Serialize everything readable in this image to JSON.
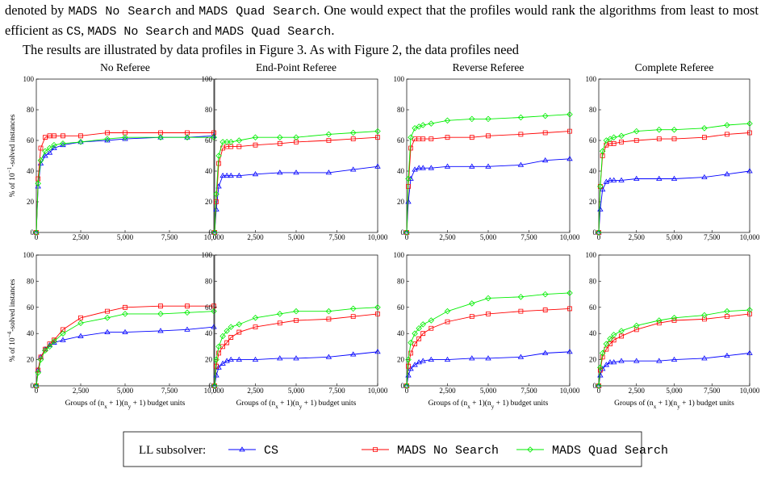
{
  "text": {
    "paragraph_1": [
      "denoted by ",
      "MADS No Search",
      " and ",
      "MADS Quad Search",
      ". One would expect that the profiles would rank the algorithms from least to most efficient as ",
      "CS",
      ", ",
      "MADS No Search",
      " and ",
      "MADS Quad Search",
      "."
    ],
    "paragraph_2": [
      "The results are illustrated by data profiles in Figure 3.  As with Figure 2, the data profiles need"
    ]
  },
  "legend": {
    "title": "LL subsolver:"
  },
  "chart_data": [
    {
      "type": "line",
      "title": "No Referee",
      "ylabel": [
        "% of 10",
        "−1",
        "-solved instances"
      ],
      "x": [
        0,
        100,
        250,
        500,
        750,
        1000,
        1500,
        2500,
        4000,
        5000,
        7000,
        8500,
        10000
      ],
      "xlim": [
        0,
        10000
      ],
      "ylim": [
        0,
        100
      ],
      "xticks": [
        0,
        {
          "value": 2500,
          "label": "2,500"
        },
        {
          "value": 5000,
          "label": "5,000"
        },
        {
          "value": 7500,
          "label": "7,500"
        },
        {
          "value": 10000,
          "label": "10,000"
        }
      ],
      "yticks": [
        0,
        20,
        40,
        60,
        80,
        100
      ],
      "series": [
        {
          "name": "CS",
          "color": "#0000ff",
          "values": [
            0,
            30,
            45,
            50,
            52,
            55,
            57,
            59,
            60,
            61,
            62,
            62,
            63
          ]
        },
        {
          "name": "MADS No Search",
          "color": "#ff0000",
          "values": [
            0,
            35,
            55,
            62,
            63,
            63,
            63,
            63,
            65,
            65,
            65,
            65,
            65
          ]
        },
        {
          "name": "MADS Quad Search",
          "color": "#00ee00",
          "values": [
            0,
            32,
            47,
            53,
            55,
            57,
            58,
            59,
            61,
            62,
            62,
            62,
            62
          ]
        }
      ]
    },
    {
      "type": "line",
      "title": "End-Point Referee",
      "x": [
        0,
        100,
        250,
        500,
        750,
        1000,
        1500,
        2500,
        4000,
        5000,
        7000,
        8500,
        10000
      ],
      "xlim": [
        0,
        10000
      ],
      "ylim": [
        0,
        100
      ],
      "xticks": [
        0,
        {
          "value": 2500,
          "label": "2,500"
        },
        {
          "value": 5000,
          "label": "5,000"
        },
        {
          "value": 7500,
          "label": "7,500"
        },
        {
          "value": 10000,
          "label": "10,000"
        }
      ],
      "yticks": [
        0,
        20,
        40,
        60,
        80,
        100
      ],
      "series": [
        {
          "name": "CS",
          "color": "#0000ff",
          "values": [
            0,
            15,
            30,
            37,
            37,
            37,
            37,
            38,
            39,
            39,
            39,
            41,
            43
          ]
        },
        {
          "name": "MADS No Search",
          "color": "#ff0000",
          "values": [
            0,
            20,
            45,
            55,
            56,
            56,
            56,
            57,
            58,
            59,
            60,
            61,
            62
          ]
        },
        {
          "name": "MADS Quad Search",
          "color": "#00ee00",
          "values": [
            0,
            25,
            50,
            59,
            59,
            59,
            60,
            62,
            62,
            62,
            64,
            65,
            66
          ]
        }
      ]
    },
    {
      "type": "line",
      "title": "Reverse Referee",
      "x": [
        0,
        100,
        250,
        500,
        750,
        1000,
        1500,
        2500,
        4000,
        5000,
        7000,
        8500,
        10000
      ],
      "xlim": [
        0,
        10000
      ],
      "ylim": [
        0,
        100
      ],
      "xticks": [
        0,
        {
          "value": 2500,
          "label": "2,500"
        },
        {
          "value": 5000,
          "label": "5,000"
        },
        {
          "value": 7500,
          "label": "7,500"
        },
        {
          "value": 10000,
          "label": "10,000"
        }
      ],
      "yticks": [
        0,
        20,
        40,
        60,
        80,
        100
      ],
      "series": [
        {
          "name": "CS",
          "color": "#0000ff",
          "values": [
            0,
            20,
            35,
            41,
            42,
            42,
            42,
            43,
            43,
            43,
            44,
            47,
            48
          ]
        },
        {
          "name": "MADS No Search",
          "color": "#ff0000",
          "values": [
            0,
            30,
            55,
            61,
            61,
            61,
            61,
            62,
            62,
            63,
            64,
            65,
            66
          ]
        },
        {
          "name": "MADS Quad Search",
          "color": "#00ee00",
          "values": [
            0,
            35,
            62,
            68,
            69,
            70,
            71,
            73,
            74,
            74,
            75,
            76,
            77
          ]
        }
      ]
    },
    {
      "type": "line",
      "title": "Complete Referee",
      "x": [
        0,
        100,
        250,
        500,
        750,
        1000,
        1500,
        2500,
        4000,
        5000,
        7000,
        8500,
        10000
      ],
      "xlim": [
        0,
        10000
      ],
      "ylim": [
        0,
        100
      ],
      "xticks": [
        0,
        {
          "value": 2500,
          "label": "2,500"
        },
        {
          "value": 5000,
          "label": "5,000"
        },
        {
          "value": 7500,
          "label": "7,500"
        },
        {
          "value": 10000,
          "label": "10,000"
        }
      ],
      "yticks": [
        0,
        20,
        40,
        60,
        80,
        100
      ],
      "series": [
        {
          "name": "CS",
          "color": "#0000ff",
          "values": [
            0,
            15,
            28,
            33,
            34,
            34,
            34,
            35,
            35,
            35,
            36,
            38,
            40
          ]
        },
        {
          "name": "MADS No Search",
          "color": "#ff0000",
          "values": [
            0,
            30,
            50,
            57,
            58,
            58,
            59,
            60,
            61,
            61,
            62,
            64,
            65
          ]
        },
        {
          "name": "MADS Quad Search",
          "color": "#00ee00",
          "values": [
            0,
            30,
            53,
            60,
            61,
            62,
            63,
            66,
            67,
            67,
            68,
            70,
            71
          ]
        }
      ]
    },
    {
      "type": "line",
      "xlabel": [
        "Groups of (n",
        "x",
        " + 1)(n",
        "y",
        " + 1) budget units"
      ],
      "ylabel": [
        "% of 10",
        "−4",
        "-solved instances"
      ],
      "x": [
        0,
        100,
        250,
        500,
        750,
        1000,
        1500,
        2500,
        4000,
        5000,
        7000,
        8500,
        10000
      ],
      "xlim": [
        0,
        10000
      ],
      "ylim": [
        0,
        100
      ],
      "xticks": [
        0,
        {
          "value": 2500,
          "label": "2,500"
        },
        {
          "value": 5000,
          "label": "5,000"
        },
        {
          "value": 7500,
          "label": "7,500"
        },
        {
          "value": 10000,
          "label": "10,000"
        }
      ],
      "yticks": [
        0,
        20,
        40,
        60,
        80,
        100
      ],
      "series": [
        {
          "name": "CS",
          "color": "#0000ff",
          "values": [
            0,
            12,
            22,
            28,
            31,
            33,
            35,
            38,
            41,
            41,
            42,
            43,
            45
          ]
        },
        {
          "name": "MADS No Search",
          "color": "#ff0000",
          "values": [
            0,
            12,
            22,
            28,
            32,
            35,
            43,
            52,
            57,
            60,
            61,
            61,
            61
          ]
        },
        {
          "name": "MADS Quad Search",
          "color": "#00ee00",
          "values": [
            0,
            10,
            20,
            27,
            30,
            34,
            40,
            48,
            52,
            55,
            55,
            56,
            57
          ]
        }
      ]
    },
    {
      "type": "line",
      "xlabel": [
        "Groups of (n",
        "x",
        " + 1)(n",
        "y",
        " + 1) budget units"
      ],
      "x": [
        0,
        100,
        250,
        500,
        750,
        1000,
        1500,
        2500,
        4000,
        5000,
        7000,
        8500,
        10000
      ],
      "xlim": [
        0,
        10000
      ],
      "ylim": [
        0,
        100
      ],
      "xticks": [
        0,
        {
          "value": 2500,
          "label": "2,500"
        },
        {
          "value": 5000,
          "label": "5,000"
        },
        {
          "value": 7500,
          "label": "7,500"
        },
        {
          "value": 10000,
          "label": "10,000"
        }
      ],
      "yticks": [
        0,
        20,
        40,
        60,
        80,
        100
      ],
      "series": [
        {
          "name": "CS",
          "color": "#0000ff",
          "values": [
            0,
            8,
            14,
            17,
            19,
            20,
            20,
            20,
            21,
            21,
            22,
            24,
            26
          ]
        },
        {
          "name": "MADS No Search",
          "color": "#ff0000",
          "values": [
            0,
            15,
            25,
            30,
            33,
            37,
            41,
            45,
            48,
            50,
            51,
            53,
            55
          ]
        },
        {
          "name": "MADS Quad Search",
          "color": "#00ee00",
          "values": [
            0,
            20,
            30,
            38,
            42,
            45,
            47,
            52,
            55,
            57,
            57,
            59,
            60
          ]
        }
      ]
    },
    {
      "type": "line",
      "xlabel": [
        "Groups of (n",
        "x",
        " + 1)(n",
        "y",
        " + 1) budget units"
      ],
      "x": [
        0,
        100,
        250,
        500,
        750,
        1000,
        1500,
        2500,
        4000,
        5000,
        7000,
        8500,
        10000
      ],
      "xlim": [
        0,
        10000
      ],
      "ylim": [
        0,
        100
      ],
      "xticks": [
        0,
        {
          "value": 2500,
          "label": "2,500"
        },
        {
          "value": 5000,
          "label": "5,000"
        },
        {
          "value": 7500,
          "label": "7,500"
        },
        {
          "value": 10000,
          "label": "10,000"
        }
      ],
      "yticks": [
        0,
        20,
        40,
        60,
        80,
        100
      ],
      "series": [
        {
          "name": "CS",
          "color": "#0000ff",
          "values": [
            0,
            8,
            13,
            16,
            18,
            19,
            20,
            20,
            21,
            21,
            22,
            25,
            26
          ]
        },
        {
          "name": "MADS No Search",
          "color": "#ff0000",
          "values": [
            0,
            15,
            25,
            32,
            36,
            40,
            44,
            49,
            53,
            55,
            57,
            58,
            59
          ]
        },
        {
          "name": "MADS Quad Search",
          "color": "#00ee00",
          "values": [
            0,
            20,
            33,
            40,
            44,
            47,
            50,
            57,
            63,
            67,
            68,
            70,
            71
          ]
        }
      ]
    },
    {
      "type": "line",
      "xlabel": [
        "Groups of (n",
        "x",
        " + 1)(n",
        "y",
        " + 1) budget units"
      ],
      "x": [
        0,
        100,
        250,
        500,
        750,
        1000,
        1500,
        2500,
        4000,
        5000,
        7000,
        8500,
        10000
      ],
      "xlim": [
        0,
        10000
      ],
      "ylim": [
        0,
        100
      ],
      "xticks": [
        0,
        {
          "value": 2500,
          "label": "2,500"
        },
        {
          "value": 5000,
          "label": "5,000"
        },
        {
          "value": 7500,
          "label": "7,500"
        },
        {
          "value": 10000,
          "label": "10,000"
        }
      ],
      "yticks": [
        0,
        20,
        40,
        60,
        80,
        100
      ],
      "series": [
        {
          "name": "CS",
          "color": "#0000ff",
          "values": [
            0,
            8,
            13,
            16,
            18,
            18,
            19,
            19,
            19,
            20,
            21,
            23,
            25
          ]
        },
        {
          "name": "MADS No Search",
          "color": "#ff0000",
          "values": [
            0,
            12,
            22,
            28,
            32,
            35,
            38,
            43,
            48,
            50,
            51,
            53,
            55
          ]
        },
        {
          "name": "MADS Quad Search",
          "color": "#00ee00",
          "values": [
            0,
            14,
            25,
            32,
            36,
            39,
            42,
            46,
            50,
            52,
            54,
            57,
            58
          ]
        }
      ]
    }
  ]
}
